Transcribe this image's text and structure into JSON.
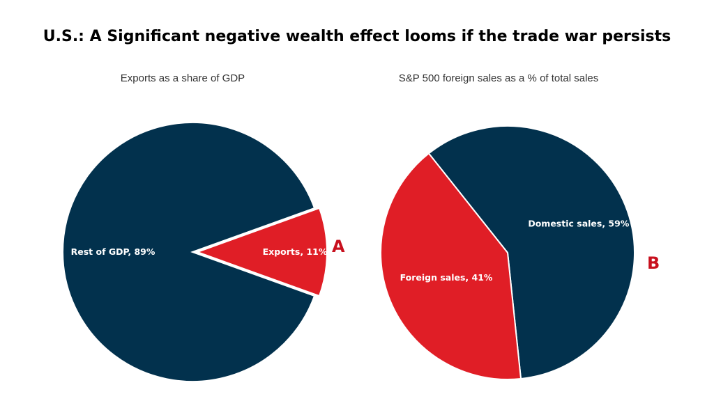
{
  "title": "U.S.: A Significant negative wealth effect looms if the trade war persists",
  "colors": {
    "navy": "#02314d",
    "red": "#e01e26"
  },
  "chart_data": [
    {
      "type": "pie",
      "title": "Exports as a share of GDP",
      "marker": "A",
      "slices": [
        {
          "label": "Rest of GDP, 89%",
          "value": 89,
          "color": "#02314d"
        },
        {
          "label": "Exports, 11%",
          "value": 11,
          "color": "#e01e26",
          "exploded": true
        }
      ]
    },
    {
      "type": "pie",
      "title": "S&P 500 foreign sales as a % of total sales",
      "marker": "B",
      "slices": [
        {
          "label": "Domestic sales, 59%",
          "value": 59,
          "color": "#02314d"
        },
        {
          "label": "Foreign sales, 41%",
          "value": 41,
          "color": "#e01e26"
        }
      ]
    }
  ]
}
